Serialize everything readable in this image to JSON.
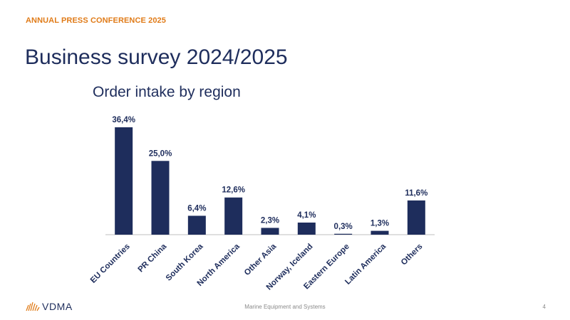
{
  "header": {
    "kicker": "ANNUAL PRESS CONFERENCE 2025",
    "title": "Business survey 2024/2025"
  },
  "footer": {
    "logo_text": "VDMA",
    "center_text": "Marine Equipment and Systems",
    "page_number": "4"
  },
  "colors": {
    "accent": "#e07b18",
    "bar": "#1e2d5c",
    "text": "#1e2d5c"
  },
  "chart_data": {
    "type": "bar",
    "title": "Order intake by region",
    "categories": [
      "EU Countries",
      "PR China",
      "South Korea",
      "North America",
      "Other Asia",
      "Norway, Iceland",
      "Eastern Europe",
      "Latin America",
      "Others"
    ],
    "values": [
      36.4,
      25.0,
      6.4,
      12.6,
      2.3,
      4.1,
      0.3,
      1.3,
      11.6
    ],
    "data_labels": [
      "36,4%",
      "25,0%",
      "6,4%",
      "12,6%",
      "2,3%",
      "4,1%",
      "0,3%",
      "1,3%",
      "11,6%"
    ],
    "xlabel": "",
    "ylabel": "",
    "ylim": [
      0,
      36.4
    ],
    "grid": false,
    "legend": "none"
  }
}
